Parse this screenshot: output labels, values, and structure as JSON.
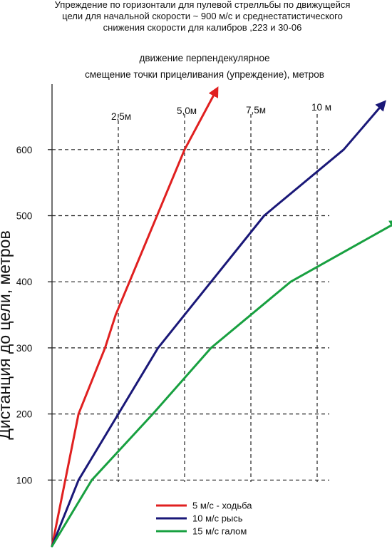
{
  "chart_data": {
    "type": "line",
    "title_lines": [
      "Упреждение по горизонтали для пулевой стрелльбы по движущейся",
      "цели для начальной скорости ~ 900 м/с и среднестатистического",
      "снижения скорости для калибров ,223 и 30-06"
    ],
    "subtitle_lines": [
      "движение перпендекулярное",
      "смещение точки прицеливания (упреждение), метров"
    ],
    "ylabel": "Дистанция до цели, метров",
    "x_ticks": [
      {
        "value": 2.5,
        "label": "2,5м"
      },
      {
        "value": 5.0,
        "label": "5,0м"
      },
      {
        "value": 7.5,
        "label": "7,5м"
      },
      {
        "value": 10,
        "label": "10 м"
      }
    ],
    "y_ticks": [
      {
        "value": 100,
        "label": "100"
      },
      {
        "value": 200,
        "label": "200"
      },
      {
        "value": 300,
        "label": "300"
      },
      {
        "value": 400,
        "label": "400"
      },
      {
        "value": 500,
        "label": "500"
      },
      {
        "value": 600,
        "label": "600"
      }
    ],
    "xlim": [
      0,
      13
    ],
    "ylim": [
      0,
      700
    ],
    "grid": true,
    "legend_position": "bottom-center",
    "series": [
      {
        "name": "5 м/с - ходьба",
        "color": "#e02020",
        "points": [
          [
            0,
            0
          ],
          [
            0.5,
            100
          ],
          [
            1.0,
            200
          ],
          [
            2.0,
            300
          ],
          [
            2.4,
            350
          ],
          [
            5.0,
            600
          ],
          [
            6.2,
            690
          ]
        ]
      },
      {
        "name": "10 м/с рысь",
        "color": "#1a1878",
        "points": [
          [
            0,
            0
          ],
          [
            1.0,
            100
          ],
          [
            2.5,
            200
          ],
          [
            4.0,
            300
          ],
          [
            6.0,
            400
          ],
          [
            8.0,
            500
          ],
          [
            11.0,
            600
          ],
          [
            12.5,
            670
          ]
        ]
      },
      {
        "name": "15 м/с галом",
        "color": "#18a040",
        "points": [
          [
            0,
            0
          ],
          [
            1.5,
            100
          ],
          [
            3.8,
            200
          ],
          [
            6.0,
            300
          ],
          [
            9.0,
            400
          ],
          [
            13.0,
            490
          ]
        ]
      }
    ]
  }
}
